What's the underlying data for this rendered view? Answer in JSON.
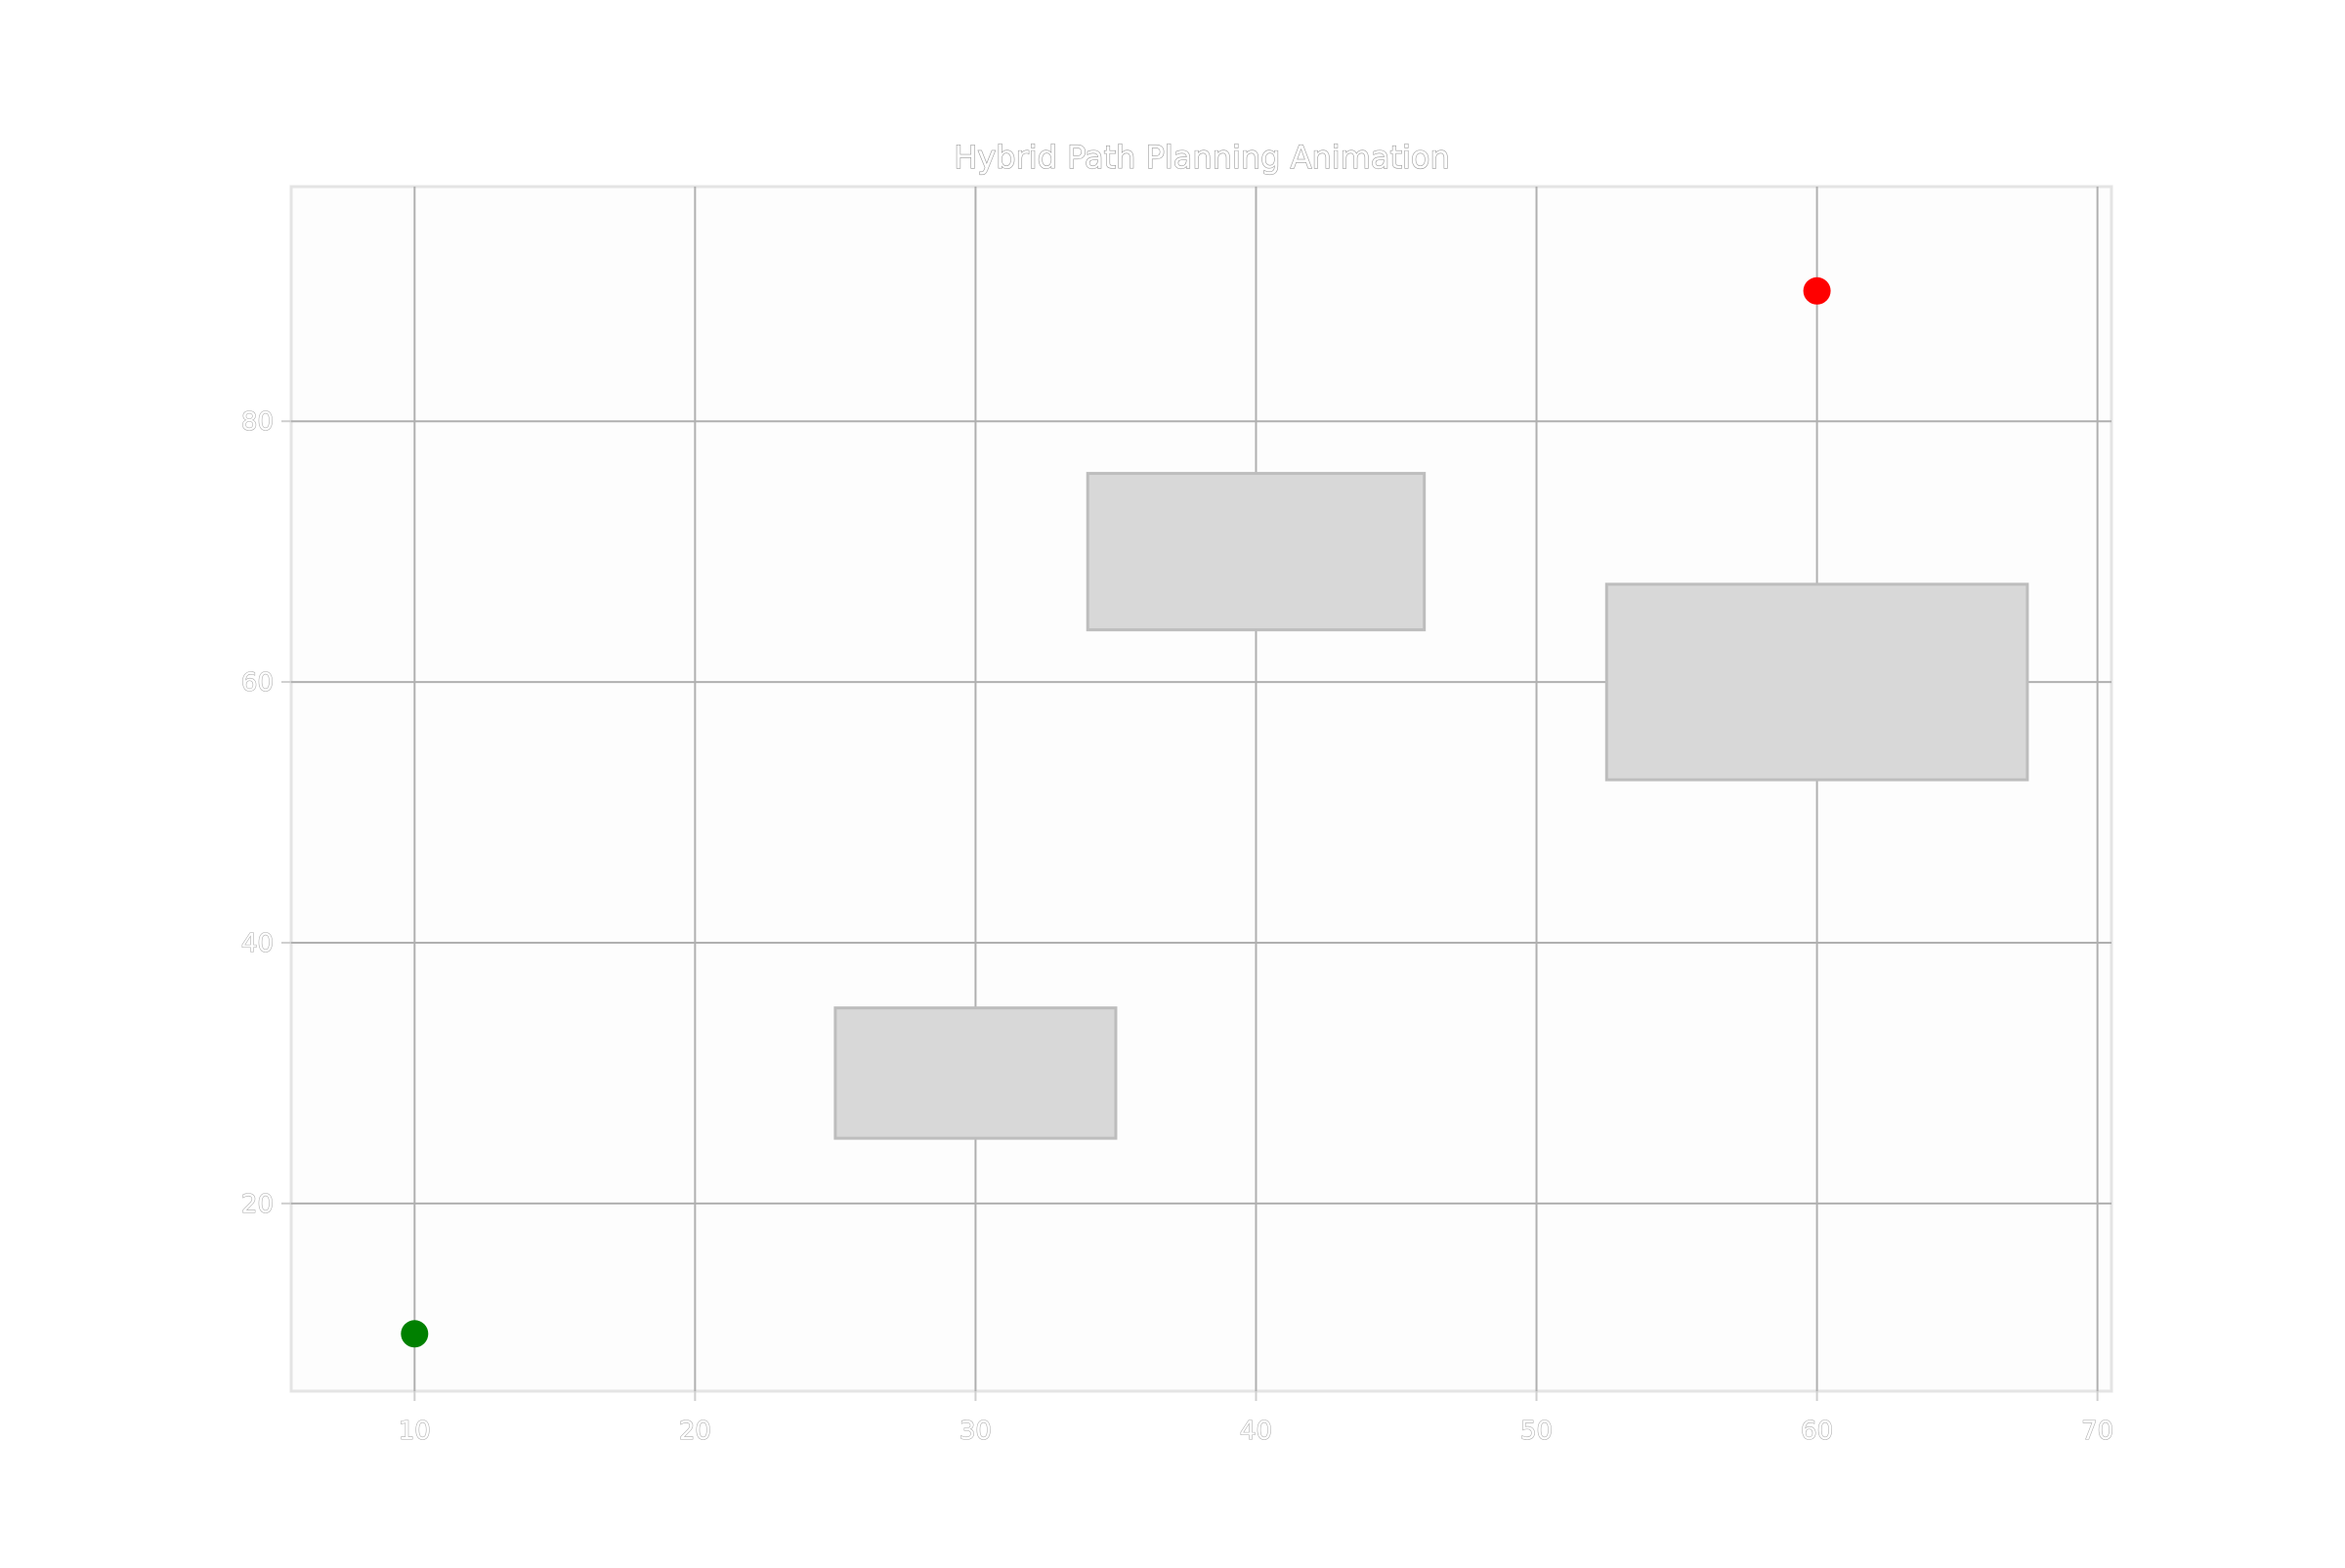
{
  "chart_data": {
    "type": "scatter",
    "title": "Hybrid Path Planning Animation",
    "xlabel": "",
    "ylabel": "",
    "xlim": [
      5.6,
      70.5
    ],
    "ylim": [
      5.6,
      98.0
    ],
    "xticks": [
      10,
      20,
      30,
      40,
      50,
      60,
      70
    ],
    "yticks": [
      20,
      40,
      60,
      80
    ],
    "grid": true,
    "obstacles": [
      {
        "x": 25,
        "y": 25,
        "width": 10,
        "height": 10
      },
      {
        "x": 34,
        "y": 64,
        "width": 12,
        "height": 12
      },
      {
        "x": 52.5,
        "y": 52.5,
        "width": 15,
        "height": 15
      }
    ],
    "points": [
      {
        "x": 10,
        "y": 10,
        "color": "#008000"
      },
      {
        "x": 60,
        "y": 90,
        "color": "#ff0000"
      }
    ],
    "colors": {
      "obstacle_fill": "#d8d8d8",
      "grid": "#b0b0b0",
      "start": "#008000",
      "goal": "#ff0000"
    }
  }
}
